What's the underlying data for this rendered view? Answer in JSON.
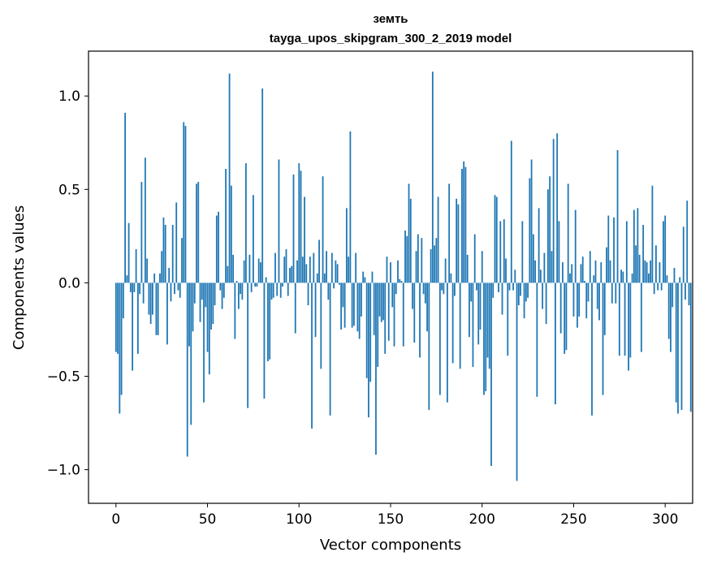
{
  "chart_data": {
    "type": "bar",
    "title_line1": "земть",
    "title_line2": "tayga_upos_skipgram_300_2_2019 model",
    "xlabel": "Vector components",
    "ylabel": "Components values",
    "xlim": [
      -15,
      315
    ],
    "ylim": [
      -1.18,
      1.24
    ],
    "xticks": [
      0,
      50,
      100,
      150,
      200,
      250,
      300
    ],
    "xtick_labels": [
      "0",
      "50",
      "100",
      "150",
      "200",
      "250",
      "300"
    ],
    "yticks": [
      -1.0,
      -0.5,
      0.0,
      0.5,
      1.0
    ],
    "ytick_labels": [
      "−1.0",
      "−0.5",
      "0.0",
      "0.5",
      "1.0"
    ],
    "bar_color": "#1f77b4",
    "values": [
      -0.37,
      -0.38,
      -0.7,
      -0.6,
      -0.19,
      0.91,
      0.04,
      0.32,
      -0.05,
      -0.47,
      -0.05,
      0.18,
      -0.38,
      -0.06,
      0.54,
      -0.11,
      0.67,
      0.13,
      -0.17,
      -0.22,
      -0.17,
      0.05,
      -0.28,
      -0.28,
      0.05,
      0.17,
      0.35,
      0.31,
      -0.33,
      0.08,
      -0.1,
      0.31,
      -0.06,
      0.43,
      -0.04,
      -0.08,
      0.24,
      0.86,
      0.84,
      -0.93,
      -0.34,
      -0.76,
      -0.26,
      -0.11,
      0.53,
      0.54,
      -0.21,
      -0.09,
      -0.64,
      -0.13,
      -0.37,
      -0.49,
      -0.25,
      -0.22,
      -0.12,
      0.36,
      0.38,
      -0.04,
      -0.14,
      -0.08,
      0.61,
      0.09,
      1.12,
      0.52,
      0.15,
      -0.3,
      0.01,
      -0.14,
      -0.06,
      -0.09,
      0.12,
      0.64,
      -0.67,
      0.15,
      -0.05,
      0.47,
      -0.02,
      -0.02,
      0.13,
      0.11,
      1.04,
      -0.62,
      0.03,
      -0.42,
      -0.41,
      -0.09,
      -0.08,
      0.16,
      -0.07,
      0.66,
      -0.08,
      -0.02,
      0.14,
      0.18,
      -0.07,
      0.08,
      0.09,
      0.58,
      -0.27,
      0.12,
      0.64,
      0.6,
      0.14,
      0.46,
      0.1,
      -0.12,
      0.14,
      -0.78,
      0.16,
      -0.29,
      0.05,
      0.23,
      -0.46,
      0.57,
      0.05,
      0.17,
      -0.09,
      -0.71,
      0.16,
      -0.03,
      0.12,
      0.1,
      -0.01,
      -0.25,
      -0.13,
      -0.24,
      0.4,
      0.14,
      0.81,
      -0.24,
      -0.23,
      0.16,
      -0.26,
      -0.3,
      -0.18,
      0.06,
      0.03,
      -0.51,
      -0.72,
      -0.53,
      0.06,
      -0.28,
      -0.92,
      -0.45,
      -0.18,
      -0.21,
      -0.2,
      -0.38,
      0.14,
      -0.31,
      0.11,
      -0.13,
      -0.34,
      -0.06,
      0.12,
      0.02,
      0.01,
      -0.34,
      0.28,
      0.25,
      0.53,
      0.45,
      -0.14,
      -0.32,
      0.17,
      0.26,
      -0.4,
      0.24,
      -0.06,
      -0.11,
      -0.26,
      -0.68,
      0.18,
      1.13,
      0.2,
      0.24,
      0.46,
      -0.6,
      -0.04,
      -0.06,
      0.13,
      -0.64,
      0.53,
      0.05,
      -0.43,
      -0.07,
      0.45,
      0.42,
      -0.46,
      0.61,
      0.65,
      0.62,
      0.15,
      -0.29,
      -0.1,
      -0.45,
      0.26,
      -0.04,
      -0.33,
      -0.25,
      0.17,
      -0.6,
      -0.58,
      -0.4,
      -0.46,
      -0.98,
      -0.08,
      0.47,
      0.46,
      -0.05,
      0.33,
      -0.17,
      0.34,
      0.13,
      -0.39,
      -0.04,
      0.76,
      -0.04,
      0.07,
      -1.06,
      -0.12,
      -0.07,
      0.33,
      -0.19,
      -0.1,
      -0.08,
      0.56,
      0.66,
      0.26,
      0.12,
      -0.61,
      0.4,
      0.07,
      -0.14,
      0.16,
      -0.22,
      0.5,
      0.57,
      0.17,
      0.77,
      -0.65,
      0.8,
      0.33,
      -0.27,
      0.11,
      -0.38,
      -0.36,
      0.53,
      0.05,
      0.1,
      -0.18,
      0.39,
      -0.24,
      -0.18,
      0.1,
      0.14,
      0.01,
      -0.19,
      -0.1,
      0.17,
      -0.71,
      0.04,
      0.12,
      -0.14,
      -0.2,
      0.11,
      -0.6,
      -0.28,
      0.19,
      0.36,
      0.12,
      -0.11,
      0.35,
      -0.11,
      0.71,
      -0.39,
      0.07,
      0.06,
      -0.39,
      0.33,
      -0.47,
      -0.4,
      0.05,
      0.39,
      0.2,
      0.4,
      0.15,
      -0.37,
      0.31,
      0.12,
      0.11,
      0.05,
      0.12,
      0.52,
      -0.06,
      0.2,
      -0.04,
      0.11,
      -0.04,
      0.33,
      0.36,
      0.04,
      -0.3,
      -0.37,
      -0.13,
      0.08,
      -0.64,
      -0.7,
      0.03,
      -0.68,
      0.3,
      -0.09,
      0.44,
      -0.12,
      -0.69
    ],
    "grid": false,
    "legend": "none"
  }
}
